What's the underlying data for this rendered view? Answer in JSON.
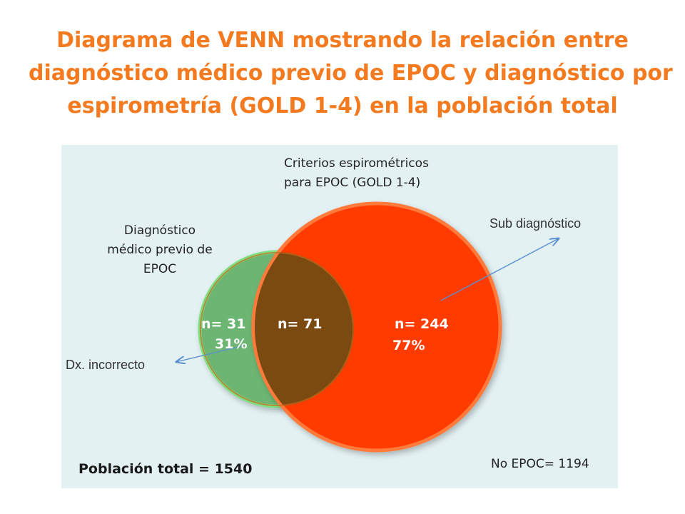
{
  "title": {
    "line1": "Diagrama de VENN mostrando la relación entre",
    "line2": "diagnóstico médico previo de EPOC y diagnóstico por",
    "line3": "espirometría (GOLD 1-4) en la población total"
  },
  "colors": {
    "title": "#f47a20",
    "panel_bg": "#e3f1f3",
    "green_circle": "#6db572",
    "green_edge": "#7fe082",
    "red_circle": "#ff3a00",
    "red_edge": "#ff7a3a",
    "overlap": "#7a4a10",
    "arrow": "#5b8fcf"
  },
  "labels": {
    "spiro_line1": "Criterios espirométricos",
    "spiro_line2": "para EPOC (GOLD 1-4)",
    "dx_line1": "Diagnóstico",
    "dx_line2": "médico previo de",
    "dx_line3": "EPOC",
    "sub_diag": "Sub diagnóstico",
    "dx_incorrect": "Dx. incorrecto"
  },
  "sets": {
    "green_only_n": "n= 31",
    "green_only_pct": "31%",
    "overlap_n": "n= 71",
    "red_only_n": "n= 244",
    "red_only_pct": "77%"
  },
  "footer": {
    "total": "Población total = 1540",
    "no_epoc": "No EPOC= 1194"
  }
}
